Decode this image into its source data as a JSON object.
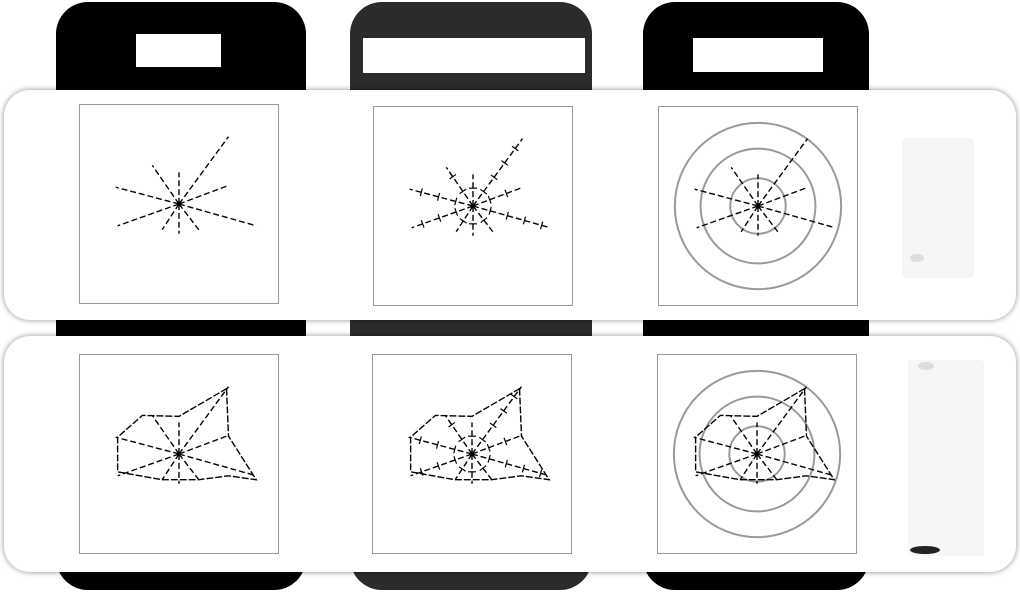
{
  "headers": [
    "",
    "",
    ""
  ],
  "rows": [
    {
      "panels": [
        {
          "name": "star",
          "rings": false,
          "ticks": false,
          "polygon": false
        },
        {
          "name": "star-ticks",
          "rings": false,
          "ticks": true,
          "polygon": false
        },
        {
          "name": "star-rings",
          "rings": true,
          "ticks": false,
          "polygon": false
        }
      ]
    },
    {
      "panels": [
        {
          "name": "polygon",
          "rings": false,
          "ticks": false,
          "polygon": true
        },
        {
          "name": "polygon-ticks",
          "rings": false,
          "ticks": true,
          "polygon": true
        },
        {
          "name": "polygon-rings",
          "rings": true,
          "ticks": false,
          "polygon": true
        }
      ]
    }
  ],
  "colors": {
    "column_dark": "#000000",
    "column_mid": "#2b2b2d",
    "ring": "#999999",
    "line": "#000000"
  }
}
